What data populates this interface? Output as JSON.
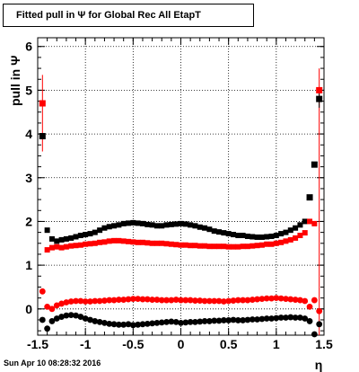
{
  "title": "Fitted pull in  Ψ  for Global Rec All EtapT",
  "footer": "Sun Apr 10 08:28:32 2016",
  "chart_data": {
    "type": "scatter",
    "xlabel": "η",
    "ylabel": "pull in  Ψ",
    "xlim": [
      -1.5,
      1.5
    ],
    "ylim": [
      -0.6,
      6.2
    ],
    "grid": true,
    "xticks": [
      "-1.5",
      "-1",
      "-0.5",
      "0",
      "0.5",
      "1",
      "1.5"
    ],
    "yticks": [
      "0",
      "1",
      "2",
      "3",
      "4",
      "5",
      "6"
    ],
    "x": [
      -1.45,
      -1.4,
      -1.35,
      -1.3,
      -1.25,
      -1.2,
      -1.15,
      -1.1,
      -1.05,
      -1.0,
      -0.95,
      -0.9,
      -0.85,
      -0.8,
      -0.75,
      -0.7,
      -0.65,
      -0.6,
      -0.55,
      -0.5,
      -0.45,
      -0.4,
      -0.35,
      -0.3,
      -0.25,
      -0.2,
      -0.15,
      -0.1,
      -0.05,
      0.0,
      0.05,
      0.1,
      0.15,
      0.2,
      0.25,
      0.3,
      0.35,
      0.4,
      0.45,
      0.5,
      0.55,
      0.6,
      0.65,
      0.7,
      0.75,
      0.8,
      0.85,
      0.9,
      0.95,
      1.0,
      1.05,
      1.1,
      1.15,
      1.2,
      1.25,
      1.3,
      1.35,
      1.4,
      1.45
    ],
    "series": [
      {
        "color": "#000000",
        "values": [
          3.95,
          1.8,
          1.6,
          1.55,
          1.58,
          1.6,
          1.62,
          1.65,
          1.68,
          1.7,
          1.72,
          1.75,
          1.8,
          1.85,
          1.88,
          1.9,
          1.92,
          1.95,
          1.96,
          1.97,
          1.96,
          1.95,
          1.93,
          1.92,
          1.9,
          1.9,
          1.92,
          1.93,
          1.94,
          1.95,
          1.94,
          1.92,
          1.9,
          1.87,
          1.85,
          1.82,
          1.78,
          1.76,
          1.74,
          1.72,
          1.7,
          1.68,
          1.68,
          1.66,
          1.65,
          1.64,
          1.64,
          1.65,
          1.66,
          1.68,
          1.72,
          1.75,
          1.8,
          1.85,
          1.92,
          2.0,
          2.55,
          3.3,
          4.8
        ]
      },
      {
        "color": "#000000",
        "values": [
          -0.25,
          -0.45,
          -0.28,
          -0.22,
          -0.18,
          -0.15,
          -0.14,
          -0.15,
          -0.18,
          -0.22,
          -0.25,
          -0.28,
          -0.3,
          -0.32,
          -0.34,
          -0.35,
          -0.36,
          -0.36,
          -0.35,
          -0.37,
          -0.36,
          -0.35,
          -0.34,
          -0.33,
          -0.32,
          -0.31,
          -0.3,
          -0.29,
          -0.3,
          -0.32,
          -0.31,
          -0.3,
          -0.3,
          -0.29,
          -0.28,
          -0.28,
          -0.27,
          -0.27,
          -0.26,
          -0.26,
          -0.25,
          -0.26,
          -0.26,
          -0.25,
          -0.24,
          -0.24,
          -0.23,
          -0.22,
          -0.22,
          -0.21,
          -0.2,
          -0.2,
          -0.19,
          -0.2,
          -0.2,
          -0.22,
          -0.28,
          -0.58,
          -0.35
        ]
      },
      {
        "color": "#ff0000",
        "values": [
          4.7,
          1.35,
          1.4,
          1.42,
          1.4,
          1.42,
          1.44,
          1.45,
          1.46,
          1.48,
          1.49,
          1.5,
          1.52,
          1.53,
          1.55,
          1.56,
          1.56,
          1.55,
          1.54,
          1.53,
          1.52,
          1.52,
          1.51,
          1.5,
          1.5,
          1.5,
          1.49,
          1.48,
          1.47,
          1.46,
          1.46,
          1.45,
          1.45,
          1.44,
          1.44,
          1.43,
          1.43,
          1.43,
          1.43,
          1.42,
          1.42,
          1.42,
          1.43,
          1.43,
          1.44,
          1.45,
          1.46,
          1.48,
          1.48,
          1.5,
          1.52,
          1.55,
          1.58,
          1.62,
          1.68,
          1.74,
          2.0,
          1.95,
          5.0
        ]
      },
      {
        "color": "#ff0000",
        "values": [
          0.4,
          0.05,
          0.0,
          0.08,
          0.12,
          0.15,
          0.17,
          0.18,
          0.18,
          0.17,
          0.17,
          0.18,
          0.18,
          0.19,
          0.2,
          0.2,
          0.21,
          0.21,
          0.22,
          0.23,
          0.23,
          0.22,
          0.22,
          0.21,
          0.21,
          0.2,
          0.2,
          0.2,
          0.21,
          0.2,
          0.2,
          0.2,
          0.19,
          0.19,
          0.18,
          0.18,
          0.18,
          0.18,
          0.17,
          0.18,
          0.19,
          0.2,
          0.2,
          0.2,
          0.21,
          0.22,
          0.23,
          0.24,
          0.24,
          0.25,
          0.24,
          0.23,
          0.22,
          0.21,
          0.2,
          0.18,
          0.05,
          0.2,
          -0.05
        ]
      }
    ]
  }
}
